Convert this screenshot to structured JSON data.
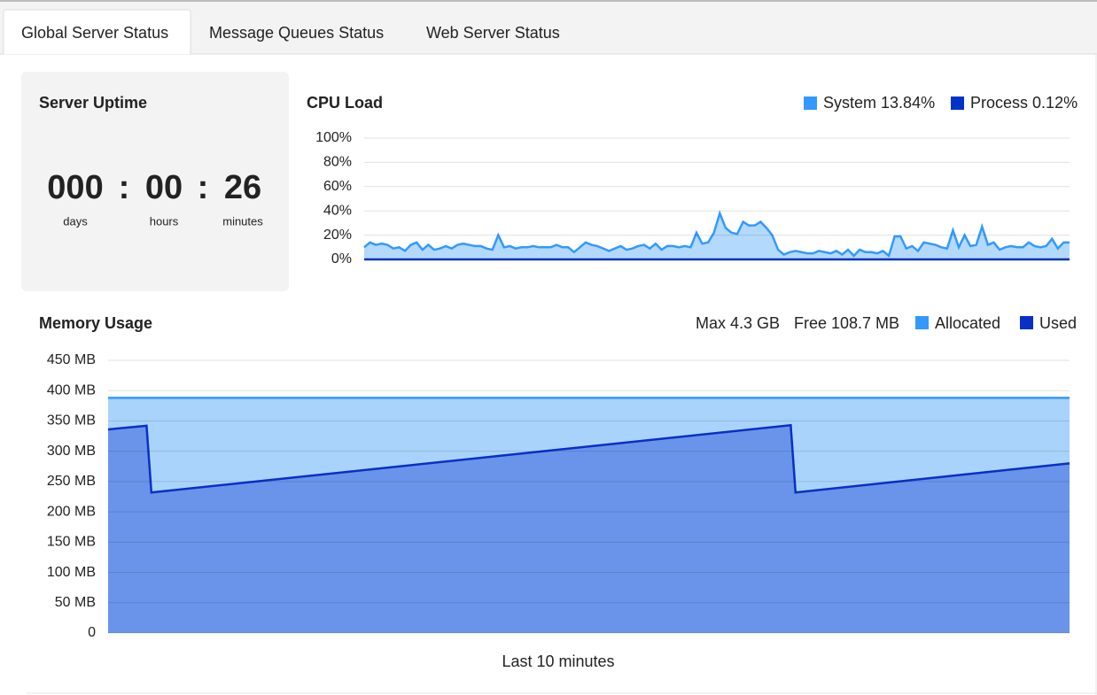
{
  "tabs": [
    {
      "label": "Global Server Status",
      "active": true
    },
    {
      "label": "Message Queues Status",
      "active": false
    },
    {
      "label": "Web Server Status",
      "active": false
    }
  ],
  "uptime": {
    "title": "Server Uptime",
    "separator": ":",
    "parts": [
      {
        "value": "000",
        "unit": "days"
      },
      {
        "value": "00",
        "unit": "hours"
      },
      {
        "value": "26",
        "unit": "minutes"
      }
    ]
  },
  "cpu_chart": {
    "type": "area",
    "title": "CPU Load",
    "ylim": [
      0,
      100
    ],
    "yticks": [
      {
        "value": 0,
        "label": "0%"
      },
      {
        "value": 20,
        "label": "20%"
      },
      {
        "value": 40,
        "label": "40%"
      },
      {
        "value": 60,
        "label": "60%"
      },
      {
        "value": 80,
        "label": "80%"
      },
      {
        "value": 100,
        "label": "100%"
      }
    ],
    "grid": true,
    "series": [
      {
        "name": "System",
        "legend_value": "13.84%",
        "color": "#3399ff",
        "fill": "#b3dafc",
        "values": [
          10,
          14,
          12,
          13,
          12,
          9,
          10,
          7,
          12,
          14,
          8,
          12,
          8,
          9,
          11,
          9,
          12,
          13,
          12,
          11,
          11,
          9,
          8,
          20,
          10,
          11,
          9,
          10,
          10,
          11,
          10,
          10,
          10,
          12,
          10,
          10,
          6,
          10,
          14,
          12,
          11,
          9,
          7,
          9,
          11,
          8,
          9,
          11,
          12,
          9,
          13,
          8,
          11,
          11,
          10,
          11,
          10,
          22,
          13,
          14,
          22,
          38,
          26,
          22,
          21,
          31,
          28,
          28,
          31,
          26,
          20,
          8,
          4,
          6,
          7,
          6,
          5,
          5,
          7,
          6,
          5,
          7,
          4,
          8,
          3,
          8,
          6,
          6,
          5,
          7,
          3,
          19,
          19,
          9,
          11,
          7,
          14,
          13,
          12,
          10,
          9,
          24,
          10,
          20,
          11,
          12,
          27,
          12,
          14,
          8,
          10,
          11,
          10,
          10,
          14,
          11,
          10,
          11,
          17,
          9,
          14,
          14
        ]
      },
      {
        "name": "Process",
        "legend_value": "0.12%",
        "color": "#0033cc",
        "fill": "#0033cc",
        "values": [
          0,
          0,
          0,
          0,
          0,
          0,
          0,
          0,
          0,
          0,
          0,
          0,
          0,
          0,
          0,
          0,
          0,
          0,
          0,
          0,
          0,
          0,
          0,
          0,
          0,
          0,
          0,
          0,
          0,
          0,
          0,
          0,
          0,
          0,
          0,
          0,
          0,
          0,
          0,
          0,
          0,
          0,
          0,
          0,
          0,
          0,
          0,
          0,
          0,
          0,
          0,
          0,
          0,
          0,
          0,
          0,
          0,
          0,
          0,
          0,
          0,
          0,
          0,
          0,
          0,
          0,
          0,
          0,
          0,
          0,
          0,
          0,
          0,
          0,
          0,
          0,
          0,
          0,
          0,
          0,
          0,
          0,
          0,
          0,
          0,
          0,
          0,
          0,
          0,
          0,
          0,
          0,
          0,
          0,
          0,
          0,
          0,
          0,
          0,
          0,
          0,
          0,
          0,
          0,
          0,
          0,
          0,
          0,
          0,
          0,
          0,
          0,
          0,
          0,
          0,
          0,
          0,
          0,
          0,
          0,
          0,
          0
        ]
      }
    ]
  },
  "memory_chart": {
    "type": "area",
    "title": "Memory Usage",
    "x_label": "Last 10 minutes",
    "stats": [
      "Max 4.3 GB",
      "Free 108.7 MB"
    ],
    "x": [
      0,
      8,
      9,
      142,
      143,
      200
    ],
    "xlim": [
      0,
      200
    ],
    "ylim": [
      0,
      450
    ],
    "yticks": [
      0,
      {
        "value": 50,
        "label": "50 MB"
      },
      {
        "value": 100,
        "label": "100 MB"
      },
      {
        "value": 150,
        "label": "150 MB"
      },
      {
        "value": 200,
        "label": "200 MB"
      },
      {
        "value": 250,
        "label": "250 MB"
      },
      {
        "value": 300,
        "label": "300 MB"
      },
      {
        "value": 350,
        "label": "350 MB"
      },
      {
        "value": 400,
        "label": "400 MB"
      },
      {
        "value": 450,
        "label": "450 MB"
      }
    ],
    "grid": true,
    "series": [
      {
        "name": "Allocated",
        "color": "#3399ff",
        "fill": "#a9d3fb",
        "values": [
          388,
          388,
          388,
          388,
          388,
          388
        ]
      },
      {
        "name": "Used",
        "color": "#0a2fc8",
        "fill": "#6994e9",
        "values": [
          336,
          342,
          232,
          343,
          232,
          280
        ]
      }
    ]
  }
}
